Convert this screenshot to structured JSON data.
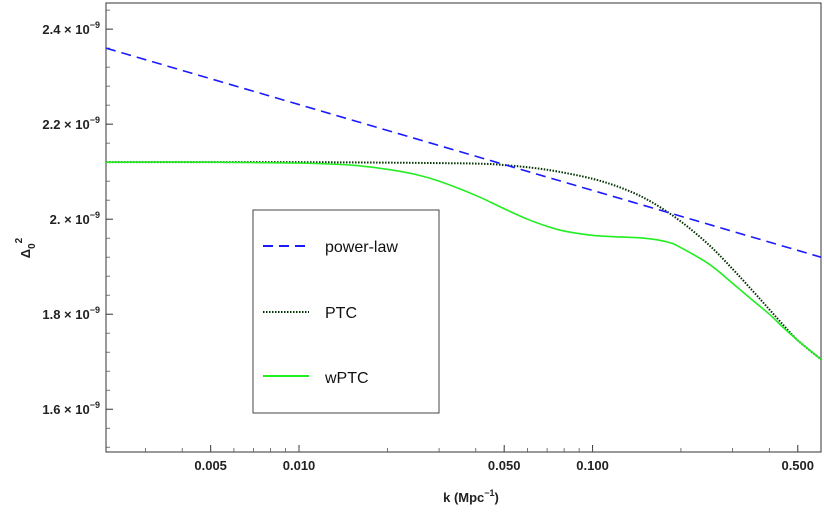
{
  "chart_data": {
    "type": "line",
    "title": "",
    "xlabel": "k (Mpc",
    "xlabel_exp": "−1",
    "xlabel_close": ")",
    "ylabel": "Δ",
    "ylabel_sub": "0",
    "ylabel_sup": "2",
    "xscale": "log",
    "xlim": [
      0.0022,
      0.6
    ],
    "ylim": [
      1.51,
      2.455
    ],
    "y_unit": "×10^-9",
    "grid": false,
    "legend_placement": "center-left",
    "x_ticks": [
      {
        "value": 0.005,
        "label": "0.005"
      },
      {
        "value": 0.01,
        "label": "0.010"
      },
      {
        "value": 0.05,
        "label": "0.050"
      },
      {
        "value": 0.1,
        "label": "0.100"
      },
      {
        "value": 0.5,
        "label": "0.500"
      }
    ],
    "y_ticks": [
      {
        "value": 1.6,
        "mantissa": "1.6",
        "exp": "−9"
      },
      {
        "value": 1.8,
        "mantissa": "1.8",
        "exp": "−9"
      },
      {
        "value": 2.0,
        "mantissa": "2.",
        "exp": "−9"
      },
      {
        "value": 2.2,
        "mantissa": "2.2",
        "exp": "−9"
      },
      {
        "value": 2.4,
        "mantissa": "2.4",
        "exp": "−9"
      }
    ],
    "series": [
      {
        "name": "power-law",
        "color": "#1a1aff",
        "style": "dashed",
        "x": [
          0.0022,
          0.6
        ],
        "y": [
          2.36,
          1.92
        ]
      },
      {
        "name": "PTC",
        "color": "#003300",
        "style": "dotted",
        "x": [
          0.0022,
          0.005,
          0.01,
          0.02,
          0.03,
          0.04,
          0.05,
          0.07,
          0.1,
          0.13,
          0.16,
          0.2,
          0.25,
          0.3,
          0.35,
          0.4,
          0.45,
          0.5,
          0.6
        ],
        "y": [
          2.12,
          2.12,
          2.12,
          2.119,
          2.118,
          2.117,
          2.114,
          2.104,
          2.085,
          2.062,
          2.035,
          1.995,
          1.945,
          1.895,
          1.85,
          1.81,
          1.775,
          1.745,
          1.705
        ]
      },
      {
        "name": "wPTC",
        "color": "#22ee22",
        "style": "solid",
        "x": [
          0.0022,
          0.005,
          0.01,
          0.015,
          0.02,
          0.025,
          0.03,
          0.04,
          0.05,
          0.06,
          0.07,
          0.08,
          0.1,
          0.12,
          0.15,
          0.18,
          0.2,
          0.25,
          0.3,
          0.35,
          0.4,
          0.45,
          0.5,
          0.6
        ],
        "y": [
          2.12,
          2.12,
          2.118,
          2.114,
          2.105,
          2.094,
          2.08,
          2.05,
          2.022,
          2.0,
          1.985,
          1.975,
          1.966,
          1.963,
          1.96,
          1.952,
          1.94,
          1.905,
          1.865,
          1.83,
          1.8,
          1.77,
          1.745,
          1.705
        ]
      }
    ]
  }
}
